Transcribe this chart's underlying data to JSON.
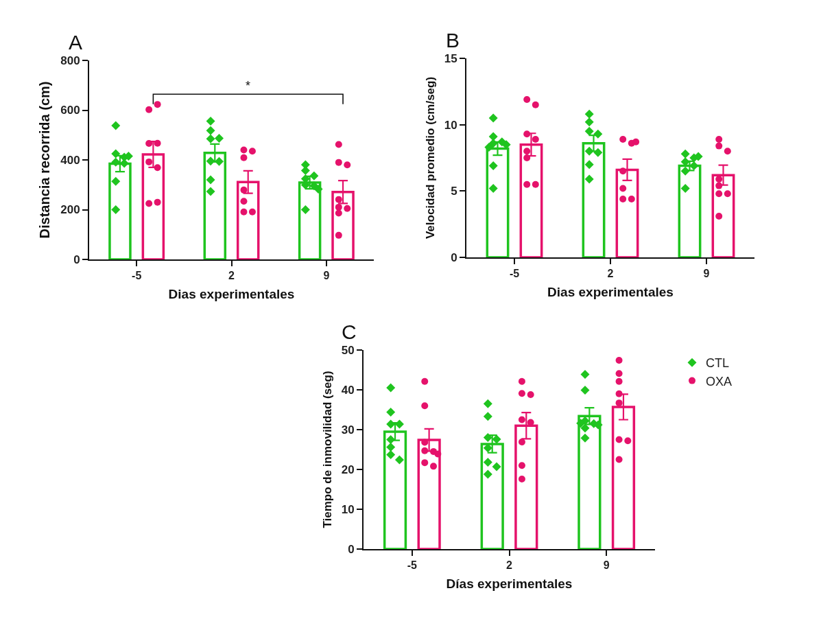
{
  "chart_data": [
    {
      "type": "bar",
      "categories": [
        "-5",
        "2",
        "9"
      ],
      "xlabel": "Dias experimentales",
      "ylabel": "Distancia recorrida (cm)",
      "ylim": [
        0,
        800
      ],
      "yticks": [
        0,
        200,
        400,
        600,
        800
      ],
      "annotations": [
        "A",
        "*"
      ],
      "series": [
        {
          "color": "#1fc41f",
          "values": [
            385,
            428,
            309
          ],
          "errors": [
            32,
            36,
            25
          ]
        },
        {
          "color": "#e5126b",
          "values": [
            422,
            311,
            271
          ],
          "errors": [
            52,
            45,
            46
          ]
        },
        {
          "type": "scatter",
          "marker": "diamond",
          "color": "#1fc41f",
          "x": [
            "-5",
            "-5",
            "-5",
            "-5",
            "-5",
            "-5",
            "-5",
            "-5",
            "2",
            "2",
            "2",
            "2",
            "2",
            "2",
            "2",
            "2",
            "9",
            "9",
            "9",
            "9",
            "9",
            "9",
            "9",
            "9"
          ],
          "values": [
            538,
            425,
            411,
            415,
            391,
            386,
            314,
            200,
            556,
            518,
            485,
            487,
            395,
            394,
            320,
            273,
            381,
            357,
            336,
            324,
            299,
            296,
            283,
            200
          ]
        },
        {
          "type": "scatter",
          "marker": "circle",
          "color": "#e5126b",
          "x": [
            "-5",
            "-5",
            "-5",
            "-5",
            "-5",
            "-5",
            "-5",
            "-5",
            "2",
            "2",
            "2",
            "2",
            "2",
            "2",
            "2",
            "9",
            "9",
            "9",
            "9",
            "9",
            "9",
            "9",
            "9"
          ],
          "values": [
            602,
            623,
            466,
            467,
            392,
            369,
            225,
            230,
            440,
            435,
            409,
            279,
            234,
            191,
            191,
            462,
            390,
            380,
            241,
            210,
            205,
            186,
            97
          ]
        }
      ]
    },
    {
      "type": "bar",
      "categories": [
        "-5",
        "2",
        "9"
      ],
      "xlabel": "Dias experimentales",
      "ylabel": "Velocidad promedio (cm/seg)",
      "ylim": [
        0,
        15
      ],
      "yticks": [
        0,
        5,
        10,
        15
      ],
      "annotations": [
        "B"
      ],
      "series": [
        {
          "color": "#1fc41f",
          "values": [
            8.2,
            8.6,
            6.9
          ],
          "errors": [
            0.5,
            0.6,
            0.35
          ]
        },
        {
          "color": "#e5126b",
          "values": [
            8.5,
            6.6,
            6.2
          ],
          "errors": [
            0.85,
            0.8,
            0.75
          ]
        },
        {
          "type": "scatter",
          "marker": "diamond",
          "color": "#1fc41f",
          "x": [
            "-5",
            "-5",
            "-5",
            "-5",
            "-5",
            "-5",
            "-5",
            "-5",
            "2",
            "2",
            "2",
            "2",
            "2",
            "2",
            "2",
            "2",
            "9",
            "9",
            "9",
            "9",
            "9",
            "9",
            "9"
          ],
          "values": [
            10.5,
            9.1,
            8.7,
            8.6,
            8.5,
            8.3,
            6.9,
            5.2,
            10.8,
            10.2,
            9.5,
            9.3,
            8.0,
            7.9,
            7.0,
            5.9,
            7.8,
            7.5,
            7.6,
            7.2,
            6.9,
            6.5,
            5.2
          ]
        },
        {
          "type": "scatter",
          "marker": "circle",
          "color": "#e5126b",
          "x": [
            "-5",
            "-5",
            "-5",
            "-5",
            "-5",
            "-5",
            "-5",
            "-5",
            "2",
            "2",
            "2",
            "2",
            "2",
            "2",
            "2",
            "9",
            "9",
            "9",
            "9",
            "9",
            "9",
            "9",
            "9"
          ],
          "values": [
            11.9,
            11.5,
            9.3,
            8.9,
            8.0,
            7.5,
            5.5,
            5.5,
            8.9,
            8.6,
            8.7,
            6.5,
            5.2,
            4.4,
            4.4,
            8.9,
            8.4,
            8.0,
            5.9,
            5.4,
            4.8,
            4.8,
            3.1
          ]
        }
      ]
    },
    {
      "type": "bar",
      "categories": [
        "-5",
        "2",
        "9"
      ],
      "xlabel": "Días experimentales",
      "ylabel": "Tiempo de inmovilidad (seg)",
      "ylim": [
        0,
        50
      ],
      "yticks": [
        0,
        10,
        20,
        30,
        40,
        50
      ],
      "annotations": [
        "C"
      ],
      "legend": "right",
      "series": [
        {
          "color": "#1fc41f",
          "values": [
            29.5,
            26.4,
            33.4
          ],
          "errors": [
            2.2,
            2.2,
            2.1
          ]
        },
        {
          "color": "#e5126b",
          "values": [
            27.4,
            31.0,
            35.7
          ],
          "errors": [
            2.8,
            3.3,
            3.2
          ]
        },
        {
          "type": "scatter",
          "name": "CTL",
          "marker": "diamond",
          "color": "#1fc41f",
          "x": [
            "-5",
            "-5",
            "-5",
            "-5",
            "-5",
            "-5",
            "-5",
            "-5",
            "2",
            "2",
            "2",
            "2",
            "2",
            "2",
            "2",
            "2",
            "9",
            "9",
            "9",
            "9",
            "9",
            "9",
            "9",
            "9"
          ],
          "values": [
            40.5,
            34.4,
            31.4,
            31.4,
            27.5,
            25.6,
            23.7,
            22.4,
            36.5,
            33.3,
            28.0,
            27.6,
            25.4,
            21.8,
            20.7,
            18.8,
            43.9,
            39.9,
            32.2,
            31.5,
            31.2,
            30.4,
            31.6,
            27.9
          ]
        },
        {
          "type": "scatter",
          "name": "OXA",
          "marker": "circle",
          "color": "#e5126b",
          "x": [
            "-5",
            "-5",
            "-5",
            "-5",
            "-5",
            "-5",
            "-5",
            "-5",
            "2",
            "2",
            "2",
            "2",
            "2",
            "2",
            "2",
            "2",
            "9",
            "9",
            "9",
            "9",
            "9",
            "9",
            "9",
            "9"
          ],
          "values": [
            42.1,
            36.0,
            26.8,
            24.7,
            24.5,
            23.9,
            21.7,
            20.8,
            42.1,
            39.1,
            38.8,
            32.5,
            31.8,
            26.9,
            21.0,
            17.6,
            47.4,
            44.1,
            42.1,
            39.0,
            36.7,
            27.5,
            27.2,
            22.5
          ]
        }
      ]
    }
  ]
}
